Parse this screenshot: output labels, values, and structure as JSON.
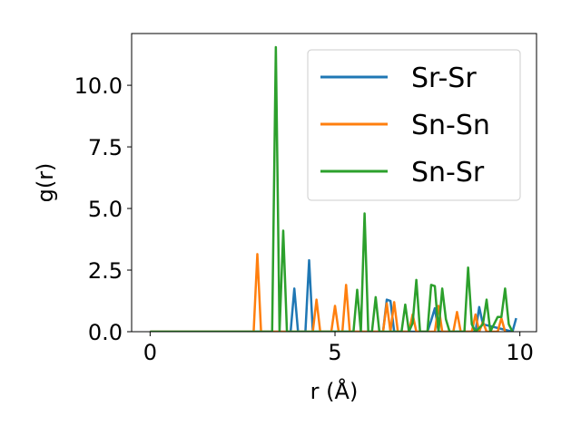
{
  "chart_data": {
    "type": "line",
    "title": "",
    "xlabel": "r (Å)",
    "ylabel": "g(r)",
    "xlim": [
      -0.5,
      10.45
    ],
    "ylim": [
      0,
      12.1
    ],
    "xticks": [
      0,
      5,
      10
    ],
    "xtick_labels": [
      "0",
      "5",
      "10"
    ],
    "yticks": [
      0,
      2.5,
      5,
      7.5,
      10
    ],
    "ytick_labels": [
      "0.0",
      "2.5",
      "5.0",
      "7.5",
      "10.0"
    ],
    "grid": false,
    "legend_position": "top-right",
    "series": [
      {
        "name": "Sr-Sr",
        "color": "#1f77b4",
        "points": [
          [
            0,
            0
          ],
          [
            3.8,
            0
          ],
          [
            3.9,
            1.75
          ],
          [
            4.0,
            0
          ],
          [
            4.2,
            0
          ],
          [
            4.3,
            2.9
          ],
          [
            4.4,
            0
          ],
          [
            6.3,
            0
          ],
          [
            6.4,
            1.3
          ],
          [
            6.5,
            1.25
          ],
          [
            6.6,
            0
          ],
          [
            7.5,
            0
          ],
          [
            7.6,
            0.45
          ],
          [
            7.7,
            0.95
          ],
          [
            7.8,
            0
          ],
          [
            8.8,
            0
          ],
          [
            8.9,
            1.0
          ],
          [
            9.0,
            0.3
          ],
          [
            9.8,
            0
          ],
          [
            9.9,
            0.55
          ]
        ]
      },
      {
        "name": "Sn-Sn",
        "color": "#ff7f0e",
        "points": [
          [
            0,
            0
          ],
          [
            2.8,
            0
          ],
          [
            2.9,
            3.15
          ],
          [
            3.0,
            0
          ],
          [
            4.4,
            0
          ],
          [
            4.5,
            1.3
          ],
          [
            4.6,
            0
          ],
          [
            4.9,
            0
          ],
          [
            5.0,
            1.05
          ],
          [
            5.1,
            0
          ],
          [
            5.2,
            0
          ],
          [
            5.3,
            1.9
          ],
          [
            5.4,
            0
          ],
          [
            6.3,
            0
          ],
          [
            6.4,
            1.15
          ],
          [
            6.5,
            0
          ],
          [
            6.6,
            1.2
          ],
          [
            6.7,
            0
          ],
          [
            7.0,
            0
          ],
          [
            7.1,
            0.7
          ],
          [
            7.2,
            0
          ],
          [
            7.7,
            0
          ],
          [
            7.8,
            1.05
          ],
          [
            7.9,
            0
          ],
          [
            8.2,
            0
          ],
          [
            8.3,
            0.8
          ],
          [
            8.4,
            0
          ],
          [
            8.7,
            0
          ],
          [
            8.8,
            0.7
          ],
          [
            8.9,
            0
          ],
          [
            9.0,
            0.4
          ],
          [
            9.1,
            0
          ],
          [
            9.4,
            0
          ],
          [
            9.5,
            0.55
          ],
          [
            9.6,
            0
          ]
        ]
      },
      {
        "name": "Sn-Sr",
        "color": "#2ca02c",
        "points": [
          [
            0,
            0
          ],
          [
            3.3,
            0
          ],
          [
            3.4,
            11.55
          ],
          [
            3.5,
            0
          ],
          [
            3.6,
            4.1
          ],
          [
            3.7,
            0
          ],
          [
            5.5,
            0
          ],
          [
            5.6,
            1.7
          ],
          [
            5.7,
            0
          ],
          [
            5.8,
            4.8
          ],
          [
            5.9,
            0
          ],
          [
            6.0,
            0
          ],
          [
            6.1,
            1.4
          ],
          [
            6.2,
            0
          ],
          [
            6.8,
            0
          ],
          [
            6.9,
            1.1
          ],
          [
            7.0,
            0
          ],
          [
            7.1,
            0.35
          ],
          [
            7.2,
            2.1
          ],
          [
            7.3,
            0
          ],
          [
            7.5,
            0
          ],
          [
            7.6,
            1.9
          ],
          [
            7.7,
            1.85
          ],
          [
            7.8,
            0
          ],
          [
            7.9,
            1.75
          ],
          [
            8.0,
            0.5
          ],
          [
            8.1,
            0
          ],
          [
            8.5,
            0
          ],
          [
            8.6,
            2.6
          ],
          [
            8.7,
            0.3
          ],
          [
            8.8,
            0
          ],
          [
            9.0,
            0.3
          ],
          [
            9.1,
            1.3
          ],
          [
            9.2,
            0
          ],
          [
            9.4,
            0.6
          ],
          [
            9.5,
            0.6
          ],
          [
            9.6,
            1.75
          ],
          [
            9.7,
            0.3
          ],
          [
            9.8,
            0
          ]
        ]
      }
    ]
  }
}
